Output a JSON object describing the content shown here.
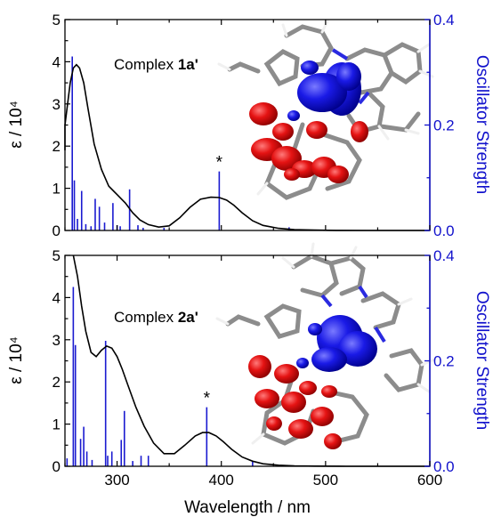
{
  "chart_data": [
    {
      "type": "line",
      "panel": "top",
      "annotation_prefix": "Complex ",
      "annotation_bold": "1a'",
      "xlabel": "Wavelength / nm",
      "ylabel_left": "ε / 10⁴",
      "ylabel_right": "Oscillator Strength",
      "xlim": [
        250,
        600
      ],
      "ylim_left": [
        0,
        5
      ],
      "ylim_right": [
        0,
        0.4
      ],
      "x_ticks": [
        "300",
        "400",
        "500",
        "600"
      ],
      "y_ticks_left": [
        "0",
        "1",
        "2",
        "3",
        "4",
        "5"
      ],
      "y_ticks_right": [
        "0.0",
        "0.2",
        "0.4"
      ],
      "star_label": "*",
      "star_at_nm": 398,
      "series": [
        {
          "kind": "absorption_curve",
          "color": "#000000",
          "x": [
            245,
            250,
            255,
            258,
            261,
            264,
            268,
            272,
            278,
            285,
            292,
            300,
            308,
            315,
            322,
            330,
            340,
            350,
            360,
            370,
            380,
            390,
            398,
            405,
            412,
            420,
            430,
            440,
            455,
            470,
            490,
            510,
            540,
            570,
            600
          ],
          "y": [
            1.9,
            2.5,
            3.5,
            3.85,
            3.93,
            3.85,
            3.5,
            2.9,
            2.05,
            1.45,
            1.05,
            0.85,
            0.65,
            0.42,
            0.25,
            0.14,
            0.08,
            0.11,
            0.3,
            0.55,
            0.74,
            0.79,
            0.78,
            0.72,
            0.6,
            0.42,
            0.23,
            0.12,
            0.05,
            0.02,
            0.008,
            0.003,
            0.001,
            0.0,
            0.0
          ]
        },
        {
          "kind": "oscillator_sticks",
          "color": "#1a1ad0",
          "x": [
            257,
            259,
            262,
            266,
            270,
            275,
            279,
            283,
            288,
            296,
            300,
            303,
            312,
            320,
            325,
            345,
            398,
            465
          ],
          "y": [
            0.33,
            0.095,
            0.022,
            0.075,
            0.012,
            0.008,
            0.06,
            0.045,
            0.015,
            0.052,
            0.01,
            0.008,
            0.078,
            0.01,
            0.005,
            0.005,
            0.112,
            0.006
          ]
        }
      ]
    },
    {
      "type": "line",
      "panel": "bottom",
      "annotation_prefix": "Complex ",
      "annotation_bold": "2a'",
      "xlabel": "Wavelength / nm",
      "ylabel_left": "ε / 10⁴",
      "ylabel_right": "Oscillator Strength",
      "xlim": [
        250,
        600
      ],
      "ylim_left": [
        0,
        5
      ],
      "ylim_right": [
        0,
        0.4
      ],
      "x_ticks": [
        "300",
        "400",
        "500",
        "600"
      ],
      "y_ticks_left": [
        "0",
        "1",
        "2",
        "3",
        "4",
        "5"
      ],
      "y_ticks_right": [
        "0.0",
        "0.2",
        "0.4"
      ],
      "star_label": "*",
      "star_at_nm": 386,
      "series": [
        {
          "kind": "absorption_curve",
          "color": "#000000",
          "x": [
            258,
            262,
            266,
            270,
            275,
            280,
            285,
            290,
            295,
            300,
            305,
            310,
            318,
            326,
            335,
            345,
            355,
            365,
            375,
            382,
            388,
            395,
            402,
            410,
            420,
            430,
            440,
            455,
            470,
            490,
            520,
            560,
            600
          ],
          "y": [
            5.0,
            4.5,
            3.8,
            3.2,
            2.7,
            2.6,
            2.75,
            2.85,
            2.8,
            2.6,
            2.3,
            1.95,
            1.4,
            0.95,
            0.55,
            0.3,
            0.3,
            0.5,
            0.72,
            0.8,
            0.8,
            0.72,
            0.58,
            0.4,
            0.22,
            0.12,
            0.06,
            0.025,
            0.01,
            0.004,
            0.001,
            0.0,
            0.0
          ]
        },
        {
          "kind": "oscillator_sticks",
          "color": "#1a1ad0",
          "x": [
            252,
            258,
            260,
            265,
            268,
            271,
            276,
            289,
            291,
            295,
            304,
            307,
            315,
            323,
            330,
            386,
            430
          ],
          "y": [
            0.015,
            0.34,
            0.23,
            0.052,
            0.075,
            0.028,
            0.012,
            0.238,
            0.02,
            0.028,
            0.05,
            0.105,
            0.01,
            0.02,
            0.02,
            0.112,
            0.01
          ]
        }
      ]
    }
  ]
}
